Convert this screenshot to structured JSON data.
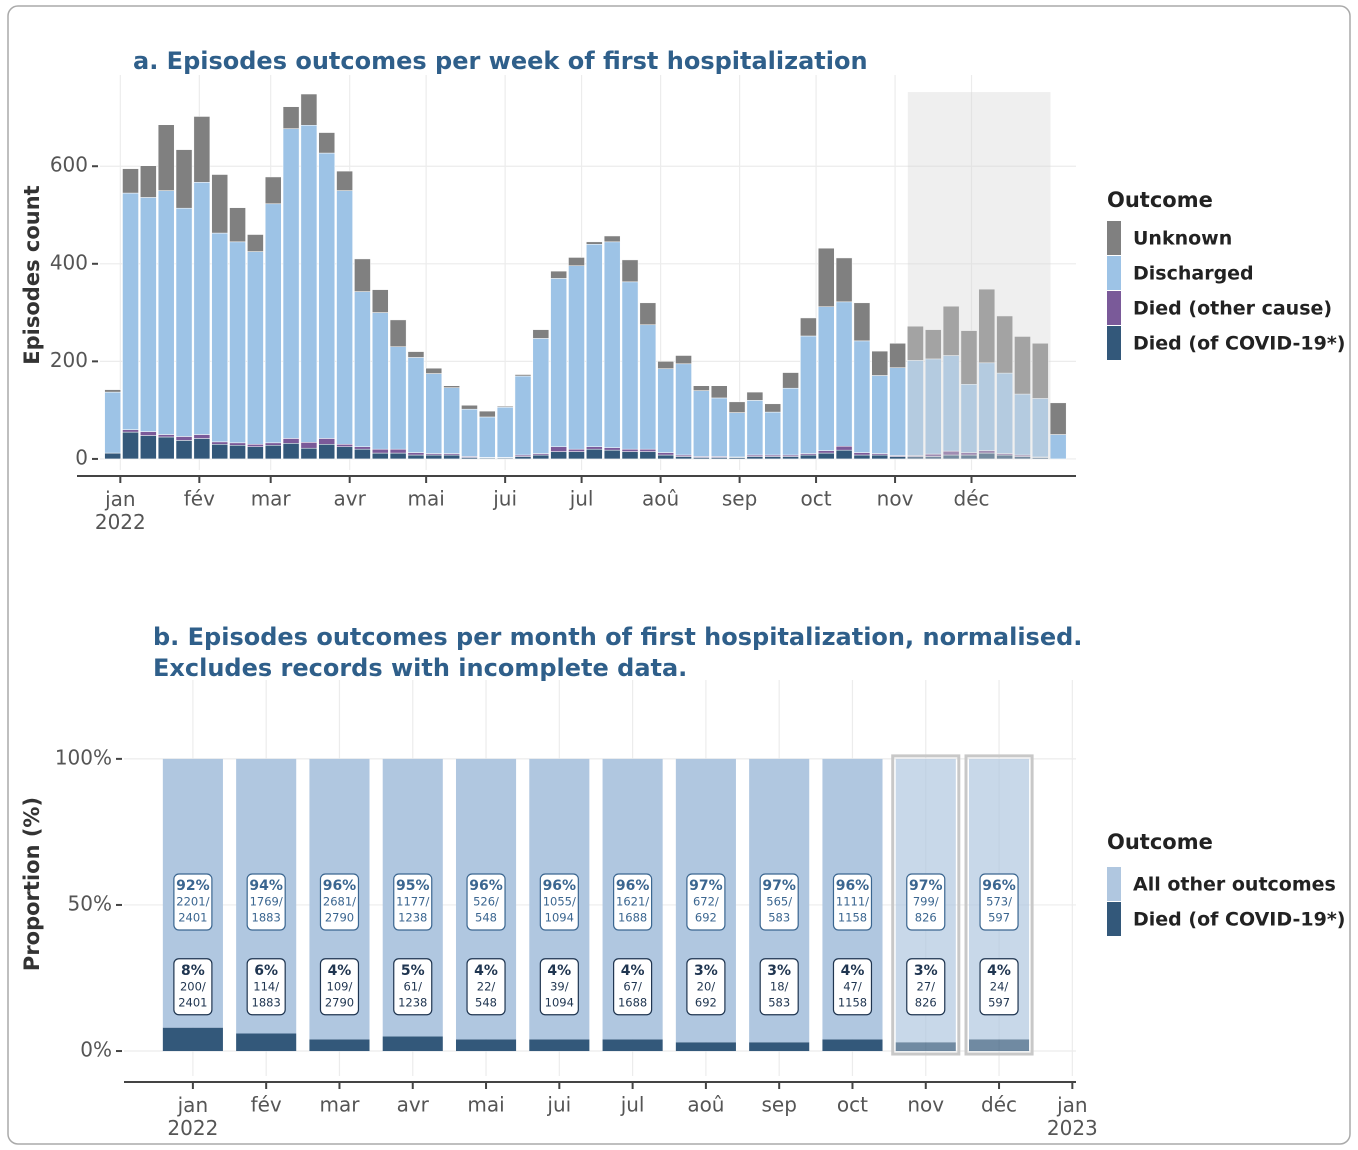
{
  "chart_data": [
    {
      "type": "bar",
      "stacked": true,
      "title": "a. Episodes outcomes per week of first hospitalization",
      "y_label": "Episodes count",
      "legend_title": "Outcome",
      "x": [
        -3,
        4,
        11,
        18,
        25,
        32,
        39,
        46,
        53,
        60,
        67,
        74,
        81,
        88,
        95,
        102,
        109,
        116,
        123,
        130,
        137,
        144,
        151,
        158,
        165,
        172,
        179,
        186,
        193,
        200,
        207,
        214,
        221,
        228,
        235,
        242,
        249,
        256,
        263,
        270,
        277,
        284,
        291,
        298,
        305,
        312,
        319,
        326,
        333,
        340,
        347,
        354,
        361,
        368
      ],
      "series": [
        {
          "name": "Unknown",
          "color": "#808080",
          "values": [
            5,
            50,
            65,
            135,
            120,
            135,
            120,
            70,
            35,
            55,
            45,
            64,
            42,
            40,
            67,
            47,
            55,
            12,
            11,
            4,
            8,
            12,
            2,
            3,
            18,
            15,
            17,
            5,
            12,
            45,
            45,
            15,
            17,
            10,
            25,
            22,
            17,
            17,
            32,
            37,
            120,
            90,
            78,
            50,
            50,
            70,
            60,
            101,
            110,
            151,
            117,
            118,
            113,
            65
          ]
        },
        {
          "name": "Discharged",
          "color": "#9dc3e6",
          "values": [
            125,
            485,
            480,
            500,
            468,
            517,
            428,
            412,
            395,
            490,
            635,
            650,
            585,
            520,
            318,
            280,
            210,
            195,
            164,
            135,
            97,
            83,
            103,
            162,
            236,
            345,
            376,
            415,
            422,
            343,
            255,
            172,
            187,
            135,
            120,
            91,
            112,
            88,
            137,
            241,
            295,
            296,
            229,
            160,
            180,
            195,
            195,
            196,
            140,
            180,
            165,
            125,
            120,
            50
          ]
        },
        {
          "name": "Died (other cause)",
          "color": "#7a5a99",
          "values": [
            0,
            5,
            8,
            5,
            8,
            8,
            5,
            5,
            5,
            5,
            10,
            12,
            12,
            5,
            5,
            8,
            8,
            5,
            3,
            3,
            2,
            1,
            1,
            3,
            3,
            10,
            5,
            5,
            5,
            5,
            5,
            5,
            3,
            2,
            2,
            1,
            3,
            3,
            3,
            3,
            5,
            8,
            5,
            3,
            2,
            2,
            5,
            8,
            5,
            5,
            3,
            3,
            1,
            0
          ]
        },
        {
          "name": "Died (of COVID-19*)",
          "color": "#33587a",
          "values": [
            12,
            55,
            48,
            45,
            38,
            42,
            30,
            28,
            25,
            28,
            32,
            22,
            30,
            25,
            20,
            12,
            12,
            8,
            8,
            8,
            3,
            2,
            2,
            5,
            8,
            15,
            15,
            20,
            18,
            15,
            15,
            8,
            5,
            3,
            3,
            3,
            5,
            5,
            5,
            8,
            12,
            18,
            8,
            8,
            5,
            5,
            5,
            8,
            8,
            12,
            8,
            5,
            3,
            0
          ]
        }
      ],
      "xlim": [
        -17,
        375
      ],
      "xticks": [
        {
          "value": 0,
          "label": "jan\n2022"
        },
        {
          "value": 31,
          "label": "fév"
        },
        {
          "value": 59,
          "label": "mar"
        },
        {
          "value": 90,
          "label": "avr"
        },
        {
          "value": 120,
          "label": "mai"
        },
        {
          "value": 151,
          "label": "jui"
        },
        {
          "value": 181,
          "label": "jul"
        },
        {
          "value": 212,
          "label": "aoû"
        },
        {
          "value": 243,
          "label": "sep"
        },
        {
          "value": 273,
          "label": "oct"
        },
        {
          "value": 304,
          "label": "nov"
        },
        {
          "value": 334,
          "label": "déc"
        }
      ],
      "ylim": [
        -35,
        787
      ],
      "yticks": [
        0,
        200,
        400,
        600
      ],
      "shaded_x": [
        309,
        365
      ],
      "shaded_y": [
        0,
        752
      ],
      "grid": true
    },
    {
      "type": "bar",
      "stacked": true,
      "title": [
        "b. Episodes outcomes per month of first hospitalization, normalised.",
        "Excludes records with incomplete data."
      ],
      "y_label": "Proportion (%)",
      "legend_title": "Outcome",
      "x": [
        0,
        1,
        2,
        3,
        4,
        5,
        6,
        7,
        8,
        9,
        10,
        11
      ],
      "incomplete": [
        false,
        false,
        false,
        false,
        false,
        false,
        false,
        false,
        false,
        false,
        true,
        true
      ],
      "series": [
        {
          "name": "All other outcomes",
          "color": "#b0c7e0",
          "values": [
            92,
            94,
            96,
            95,
            96,
            96,
            96,
            97,
            97,
            96,
            97,
            96
          ],
          "value_labels": [
            "92%",
            "94%",
            "96%",
            "95%",
            "96%",
            "96%",
            "96%",
            "97%",
            "97%",
            "96%",
            "97%",
            "96%"
          ],
          "count_labels": [
            [
              "2201/",
              "2401"
            ],
            [
              "1769/",
              "1883"
            ],
            [
              "2681/",
              "2790"
            ],
            [
              "1177/",
              "1238"
            ],
            [
              "526/",
              "548"
            ],
            [
              "1055/",
              "1094"
            ],
            [
              "1621/",
              "1688"
            ],
            [
              "672/",
              "692"
            ],
            [
              "565/",
              "583"
            ],
            [
              "1111/",
              "1158"
            ],
            [
              "799/",
              "826"
            ],
            [
              "573/",
              "597"
            ]
          ]
        },
        {
          "name": "Died (of COVID-19*)",
          "color": "#33587a",
          "values": [
            8,
            6,
            4,
            5,
            4,
            4,
            4,
            3,
            3,
            4,
            3,
            4
          ],
          "value_labels": [
            "8%",
            "6%",
            "4%",
            "5%",
            "4%",
            "4%",
            "4%",
            "3%",
            "3%",
            "4%",
            "3%",
            "4%"
          ],
          "count_labels": [
            [
              "200/",
              "2401"
            ],
            [
              "114/",
              "1883"
            ],
            [
              "109/",
              "2790"
            ],
            [
              "61/",
              "1238"
            ],
            [
              "22/",
              "548"
            ],
            [
              "39/",
              "1094"
            ],
            [
              "67/",
              "1688"
            ],
            [
              "20/",
              "692"
            ],
            [
              "18/",
              "583"
            ],
            [
              "47/",
              "1158"
            ],
            [
              "27/",
              "826"
            ],
            [
              "24/",
              "597"
            ]
          ]
        }
      ],
      "xlim": [
        -0.94,
        12.05
      ],
      "xticks": [
        {
          "value": 0,
          "label": "jan\n2022"
        },
        {
          "value": 1,
          "label": "fév"
        },
        {
          "value": 2,
          "label": "mar"
        },
        {
          "value": 3,
          "label": "avr"
        },
        {
          "value": 4,
          "label": "mai"
        },
        {
          "value": 5,
          "label": "jui"
        },
        {
          "value": 6,
          "label": "jul"
        },
        {
          "value": 7,
          "label": "aoû"
        },
        {
          "value": 8,
          "label": "sep"
        },
        {
          "value": 9,
          "label": "oct"
        },
        {
          "value": 10,
          "label": "nov"
        },
        {
          "value": 11,
          "label": "déc"
        },
        {
          "value": 12,
          "label": "jan\n2023"
        }
      ],
      "ylim": [
        -10.6,
        127
      ],
      "yticks": [
        {
          "value": 0,
          "label": "0%"
        },
        {
          "value": 50,
          "label": "50%"
        },
        {
          "value": 100,
          "label": "100%"
        }
      ],
      "grid": true
    }
  ]
}
